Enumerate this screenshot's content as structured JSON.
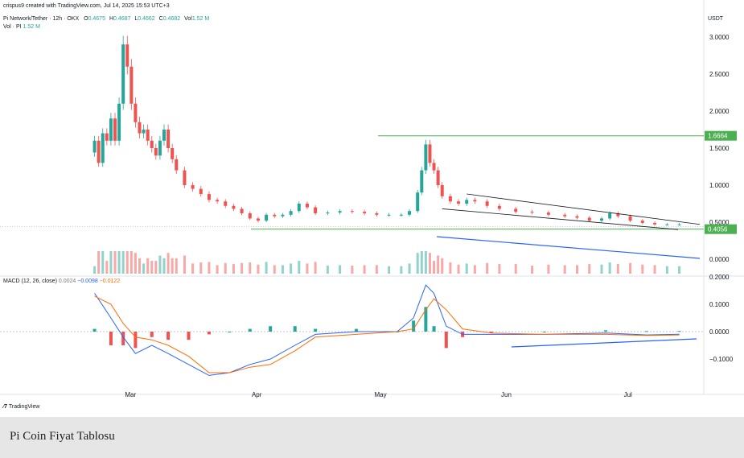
{
  "header": {
    "created_by": "crispus9 created with TradingView.com, Jul 14, 2025 15:53 UTC+3",
    "symbol": "Pi Network/Tether · 12h · OKX",
    "o_label": "O",
    "o": "0.4675",
    "h_label": "H",
    "h": "0.4687",
    "l_label": "L",
    "l": "0.4662",
    "c_label": "C",
    "c": "0.4682",
    "vol_label": "Vol",
    "vol": "1.52 M",
    "vol_row_label": "Vol · PI",
    "vol_row_value": "1.52 M",
    "currency": "USDT"
  },
  "macd_legend": {
    "label": "MACD (12, 26, close)",
    "hist": "0.0024",
    "macd": "−0.0098",
    "signal": "−0.0122"
  },
  "branding": "TradingView",
  "caption": "Pi Coin Fiyat Tablosu",
  "colors": {
    "up": "#26a69a",
    "down": "#ef5350",
    "macd_line": "#2962ff",
    "signal_line": "#ff6d00",
    "support_line": "#4caf50",
    "trend_line": "#2962ff",
    "price_tag": "#4caf50"
  },
  "chart_data": {
    "type": "candlestick",
    "title": "Pi Network/Tether · 12h · OKX",
    "price_axis": {
      "ticks": [
        "3.0000",
        "2.5000",
        "2.0000",
        "1.5000",
        "1.0000",
        "0.5000",
        "0.0000"
      ],
      "ylim": [
        0,
        3.2
      ]
    },
    "macd_axis": {
      "ticks": [
        "0.2000",
        "0.1000",
        "0.0000",
        "−0.1000"
      ],
      "ylim": [
        -0.15,
        0.2
      ]
    },
    "date_ticks": [
      "Mar",
      "Apr",
      "May",
      "Jun",
      "Jul"
    ],
    "price_tags": [
      "1.6664",
      "0.4056"
    ],
    "levels": [
      {
        "name": "resistance",
        "value": 1.6664
      },
      {
        "name": "support",
        "value": 0.4056
      }
    ],
    "close_series": [
      {
        "d": "2025-02-20",
        "c": 1.6
      },
      {
        "d": "2025-02-21",
        "c": 1.3
      },
      {
        "d": "2025-02-22",
        "c": 1.7
      },
      {
        "d": "2025-02-23",
        "c": 1.6
      },
      {
        "d": "2025-02-24",
        "c": 1.9
      },
      {
        "d": "2025-02-25",
        "c": 1.6
      },
      {
        "d": "2025-02-26",
        "c": 2.1
      },
      {
        "d": "2025-02-27",
        "c": 2.9
      },
      {
        "d": "2025-02-28",
        "c": 2.6
      },
      {
        "d": "2025-03-01",
        "c": 2.1
      },
      {
        "d": "2025-03-02",
        "c": 1.85
      },
      {
        "d": "2025-03-03",
        "c": 1.7
      },
      {
        "d": "2025-03-04",
        "c": 1.75
      },
      {
        "d": "2025-03-05",
        "c": 1.6
      },
      {
        "d": "2025-03-06",
        "c": 1.5
      },
      {
        "d": "2025-03-07",
        "c": 1.4
      },
      {
        "d": "2025-03-08",
        "c": 1.6
      },
      {
        "d": "2025-03-09",
        "c": 1.75
      },
      {
        "d": "2025-03-10",
        "c": 1.5
      },
      {
        "d": "2025-03-11",
        "c": 1.35
      },
      {
        "d": "2025-03-12",
        "c": 1.2
      },
      {
        "d": "2025-03-14",
        "c": 1.0
      },
      {
        "d": "2025-03-16",
        "c": 0.95
      },
      {
        "d": "2025-03-18",
        "c": 0.88
      },
      {
        "d": "2025-03-20",
        "c": 0.8
      },
      {
        "d": "2025-03-22",
        "c": 0.78
      },
      {
        "d": "2025-03-24",
        "c": 0.72
      },
      {
        "d": "2025-03-26",
        "c": 0.68
      },
      {
        "d": "2025-03-28",
        "c": 0.62
      },
      {
        "d": "2025-03-30",
        "c": 0.55
      },
      {
        "d": "2025-04-01",
        "c": 0.52
      },
      {
        "d": "2025-04-03",
        "c": 0.6
      },
      {
        "d": "2025-04-05",
        "c": 0.58
      },
      {
        "d": "2025-04-07",
        "c": 0.6
      },
      {
        "d": "2025-04-09",
        "c": 0.65
      },
      {
        "d": "2025-04-11",
        "c": 0.75
      },
      {
        "d": "2025-04-13",
        "c": 0.7
      },
      {
        "d": "2025-04-15",
        "c": 0.62
      },
      {
        "d": "2025-04-18",
        "c": 0.63
      },
      {
        "d": "2025-04-21",
        "c": 0.65
      },
      {
        "d": "2025-04-24",
        "c": 0.64
      },
      {
        "d": "2025-04-27",
        "c": 0.62
      },
      {
        "d": "2025-04-30",
        "c": 0.6
      },
      {
        "d": "2025-05-03",
        "c": 0.6
      },
      {
        "d": "2025-05-06",
        "c": 0.6
      },
      {
        "d": "2025-05-08",
        "c": 0.65
      },
      {
        "d": "2025-05-10",
        "c": 0.9
      },
      {
        "d": "2025-05-11",
        "c": 1.2
      },
      {
        "d": "2025-05-12",
        "c": 1.55
      },
      {
        "d": "2025-05-13",
        "c": 1.3
      },
      {
        "d": "2025-05-14",
        "c": 1.2
      },
      {
        "d": "2025-05-15",
        "c": 1.0
      },
      {
        "d": "2025-05-16",
        "c": 0.85
      },
      {
        "d": "2025-05-18",
        "c": 0.78
      },
      {
        "d": "2025-05-20",
        "c": 0.75
      },
      {
        "d": "2025-05-22",
        "c": 0.8
      },
      {
        "d": "2025-05-24",
        "c": 0.78
      },
      {
        "d": "2025-05-27",
        "c": 0.72
      },
      {
        "d": "2025-05-30",
        "c": 0.68
      },
      {
        "d": "2025-06-03",
        "c": 0.64
      },
      {
        "d": "2025-06-07",
        "c": 0.63
      },
      {
        "d": "2025-06-11",
        "c": 0.6
      },
      {
        "d": "2025-06-15",
        "c": 0.58
      },
      {
        "d": "2025-06-18",
        "c": 0.56
      },
      {
        "d": "2025-06-21",
        "c": 0.52
      },
      {
        "d": "2025-06-24",
        "c": 0.55
      },
      {
        "d": "2025-06-26",
        "c": 0.62
      },
      {
        "d": "2025-06-28",
        "c": 0.58
      },
      {
        "d": "2025-07-01",
        "c": 0.52
      },
      {
        "d": "2025-07-04",
        "c": 0.49
      },
      {
        "d": "2025-07-07",
        "c": 0.47
      },
      {
        "d": "2025-07-10",
        "c": 0.47
      },
      {
        "d": "2025-07-13",
        "c": 0.47
      }
    ],
    "macd_series": [
      {
        "d": "2025-02-20",
        "macd": 0.14,
        "signal": 0.13
      },
      {
        "d": "2025-02-24",
        "macd": 0.05,
        "signal": 0.1
      },
      {
        "d": "2025-02-27",
        "macd": -0.02,
        "signal": 0.03
      },
      {
        "d": "2025-03-02",
        "macd": -0.08,
        "signal": -0.02
      },
      {
        "d": "2025-03-06",
        "macd": -0.05,
        "signal": -0.03
      },
      {
        "d": "2025-03-10",
        "macd": -0.08,
        "signal": -0.05
      },
      {
        "d": "2025-03-15",
        "macd": -0.12,
        "signal": -0.09
      },
      {
        "d": "2025-03-20",
        "macd": -0.16,
        "signal": -0.15
      },
      {
        "d": "2025-03-25",
        "macd": -0.15,
        "signal": -0.15
      },
      {
        "d": "2025-03-30",
        "macd": -0.12,
        "signal": -0.13
      },
      {
        "d": "2025-04-04",
        "macd": -0.1,
        "signal": -0.12
      },
      {
        "d": "2025-04-10",
        "macd": -0.05,
        "signal": -0.07
      },
      {
        "d": "2025-04-15",
        "macd": -0.01,
        "signal": -0.02
      },
      {
        "d": "2025-04-25",
        "macd": 0.0,
        "signal": -0.01
      },
      {
        "d": "2025-05-05",
        "macd": 0.0,
        "signal": 0.0
      },
      {
        "d": "2025-05-09",
        "macd": 0.05,
        "signal": 0.01
      },
      {
        "d": "2025-05-12",
        "macd": 0.17,
        "signal": 0.08
      },
      {
        "d": "2025-05-14",
        "macd": 0.14,
        "signal": 0.12
      },
      {
        "d": "2025-05-17",
        "macd": 0.02,
        "signal": 0.08
      },
      {
        "d": "2025-05-21",
        "macd": -0.01,
        "signal": 0.01
      },
      {
        "d": "2025-05-28",
        "macd": -0.01,
        "signal": -0.005
      },
      {
        "d": "2025-06-10",
        "macd": -0.01,
        "signal": -0.01
      },
      {
        "d": "2025-06-25",
        "macd": -0.005,
        "signal": -0.01
      },
      {
        "d": "2025-07-05",
        "macd": -0.012,
        "signal": -0.014
      },
      {
        "d": "2025-07-13",
        "macd": -0.0098,
        "signal": -0.0122
      }
    ]
  }
}
